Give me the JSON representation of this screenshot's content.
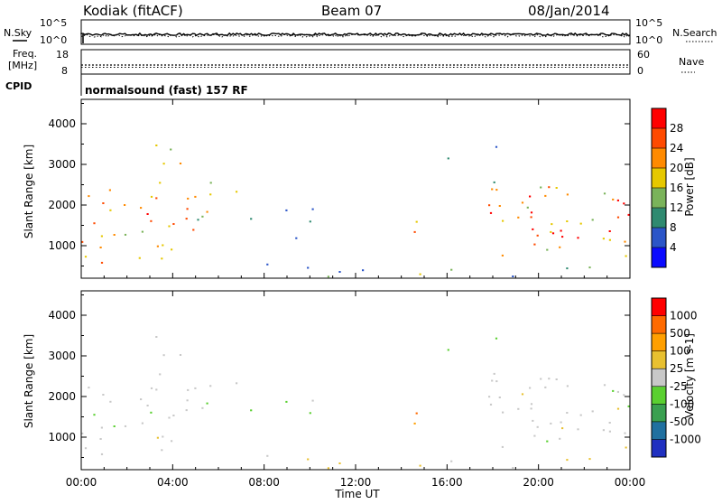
{
  "header": {
    "station": "Kodiak (fitACF)",
    "beam": "Beam 07",
    "date": "08/Jan/2014"
  },
  "side_labels": {
    "nsky": "N.Sky",
    "nsearch": "N.Search",
    "freq_line1": "Freq.",
    "freq_line2": "[MHz]",
    "nave": "Nave",
    "cpid": "CPID",
    "cpid_value": "normalsound (fast) 157 RF"
  },
  "colors": {
    "power_scale": [
      "#0a0aff",
      "#2b55c8",
      "#2f8a70",
      "#7ab35a",
      "#e6c800",
      "#ff8a00",
      "#ff4a00",
      "#ff0000"
    ],
    "velocity_scale": [
      "#ff0000",
      "#ff6a00",
      "#ff9f00",
      "#e8c030",
      "#c8c8c8",
      "#5ad030",
      "#3aa050",
      "#2070a0",
      "#2030c0"
    ]
  },
  "chart_data": [
    {
      "type": "line",
      "name": "noise-panel",
      "left_axis": {
        "label": "N.Sky",
        "ticks": [
          "10^5",
          "10^0"
        ]
      },
      "right_axis": {
        "label": "N.Search",
        "ticks": [
          "10^5",
          "10^0"
        ]
      }
    },
    {
      "type": "line",
      "name": "frequency-panel",
      "left_axis": {
        "label": "Freq. [MHz]",
        "ticks": [
          18,
          8
        ],
        "range": [
          8,
          18
        ]
      },
      "right_axis": {
        "label": "Nave",
        "ticks": [
          60,
          0
        ],
        "range": [
          0,
          60
        ]
      }
    },
    {
      "type": "heatmap",
      "name": "power-panel",
      "ylabel": "Slant Range [km]",
      "yticks": [
        1000,
        2000,
        3000,
        4000
      ],
      "ylim": [
        200,
        4600
      ],
      "xlim": [
        0,
        24
      ],
      "colorbar": {
        "label": "Power [dB]",
        "ticks": [
          4,
          8,
          12,
          16,
          20,
          24,
          28
        ],
        "range": [
          0,
          32
        ]
      }
    },
    {
      "type": "heatmap",
      "name": "velocity-panel",
      "ylabel": "Slant Range [km]",
      "yticks": [
        1000,
        2000,
        3000,
        4000
      ],
      "ylim": [
        200,
        4600
      ],
      "xlim": [
        0,
        24
      ],
      "xlabel": "Time UT",
      "xticks": [
        "00:00",
        "04:00",
        "08:00",
        "12:00",
        "16:00",
        "20:00",
        "00:00"
      ],
      "colorbar": {
        "label": "Velocity [m s-1]",
        "ticks": [
          1000,
          500,
          100,
          25,
          -25,
          -100,
          -500,
          -1000
        ]
      }
    }
  ]
}
